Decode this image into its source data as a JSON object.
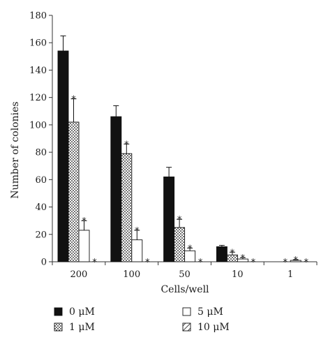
{
  "chart_data": {
    "type": "bar",
    "xlabel": "Cells/well",
    "ylabel": "Number of colonies",
    "ylim": [
      0,
      180
    ],
    "yticks": [
      0,
      20,
      40,
      60,
      80,
      100,
      120,
      140,
      160,
      180
    ],
    "categories": [
      "200",
      "100",
      "50",
      "10",
      "1"
    ],
    "significance_marker": "*",
    "legend_position": "bottom",
    "series": [
      {
        "name": "0 μM",
        "pattern": "solid-black",
        "values": [
          154,
          106,
          62,
          11,
          0
        ],
        "errors": [
          11,
          8,
          7,
          1,
          0
        ],
        "significant": [
          false,
          false,
          false,
          false,
          false
        ]
      },
      {
        "name": "1 μM",
        "pattern": "dotted",
        "values": [
          102,
          79,
          25,
          5,
          0
        ],
        "errors": [
          17,
          7,
          6,
          2,
          0
        ],
        "significant": [
          true,
          true,
          true,
          true,
          true
        ]
      },
      {
        "name": "5 μM",
        "pattern": "white",
        "values": [
          23,
          16,
          8,
          2,
          1
        ],
        "errors": [
          7,
          7,
          2,
          1,
          0.5
        ],
        "significant": [
          true,
          true,
          true,
          true,
          true
        ]
      },
      {
        "name": "10 μM",
        "pattern": "hatched",
        "values": [
          0,
          0,
          0,
          0,
          0
        ],
        "errors": [
          0,
          0,
          0,
          0,
          0
        ],
        "significant": [
          true,
          true,
          true,
          true,
          true
        ]
      }
    ]
  }
}
